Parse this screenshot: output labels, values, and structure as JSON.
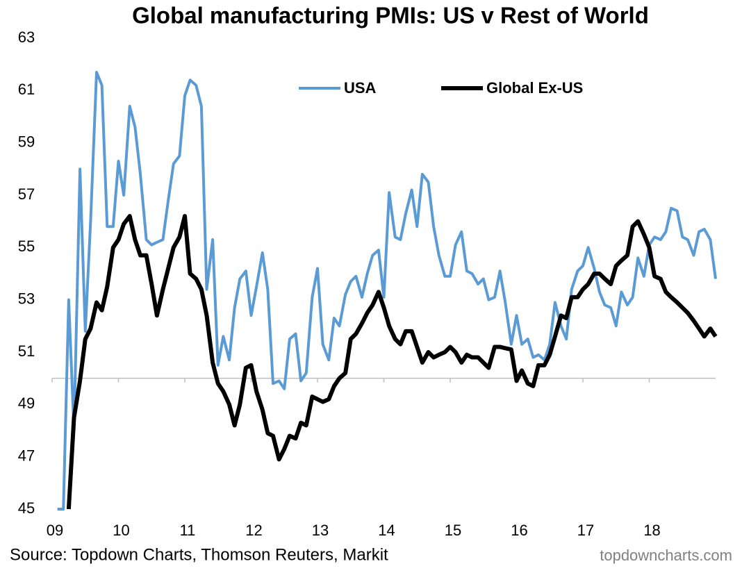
{
  "chart_data": {
    "type": "line",
    "title": "Global manufacturing PMIs: US v Rest of World",
    "source": "Source: Topdown Charts, Thomson Reuters, Markit",
    "watermark": "topdowncharts.com",
    "xlim": [
      2009,
      2019
    ],
    "ylim": [
      45,
      63
    ],
    "x_axis_crosses": 50,
    "yticks": [
      45,
      47,
      49,
      51,
      53,
      55,
      57,
      59,
      61,
      63
    ],
    "xticks": [
      {
        "value": 2009,
        "label": "09"
      },
      {
        "value": 2010,
        "label": "10"
      },
      {
        "value": 2011,
        "label": "11"
      },
      {
        "value": 2012,
        "label": "12"
      },
      {
        "value": 2013,
        "label": "13"
      },
      {
        "value": 2014,
        "label": "14"
      },
      {
        "value": 2015,
        "label": "15"
      },
      {
        "value": 2016,
        "label": "16"
      },
      {
        "value": 2017,
        "label": "17"
      },
      {
        "value": 2018,
        "label": "18"
      }
    ],
    "grid": false,
    "legend": "top",
    "x": [
      2009.08,
      2009.17,
      2009.25,
      2009.33,
      2009.42,
      2009.5,
      2009.58,
      2009.67,
      2009.75,
      2009.83,
      2009.92,
      2010,
      2010.08,
      2010.17,
      2010.25,
      2010.33,
      2010.42,
      2010.5,
      2010.58,
      2010.67,
      2010.75,
      2010.83,
      2010.92,
      2011,
      2011.08,
      2011.17,
      2011.25,
      2011.33,
      2011.42,
      2011.5,
      2011.58,
      2011.67,
      2011.75,
      2011.83,
      2011.92,
      2012,
      2012.08,
      2012.17,
      2012.25,
      2012.33,
      2012.42,
      2012.5,
      2012.58,
      2012.67,
      2012.75,
      2012.83,
      2012.92,
      2013,
      2013.08,
      2013.17,
      2013.25,
      2013.33,
      2013.42,
      2013.5,
      2013.58,
      2013.67,
      2013.75,
      2013.83,
      2013.92,
      2014,
      2014.08,
      2014.17,
      2014.25,
      2014.33,
      2014.42,
      2014.5,
      2014.58,
      2014.67,
      2014.75,
      2014.83,
      2014.92,
      2015,
      2015.08,
      2015.17,
      2015.25,
      2015.33,
      2015.42,
      2015.5,
      2015.58,
      2015.67,
      2015.75,
      2015.83,
      2015.92,
      2016,
      2016.08,
      2016.17,
      2016.25,
      2016.33,
      2016.42,
      2016.5,
      2016.58,
      2016.67,
      2016.75,
      2016.83,
      2016.92,
      2017,
      2017.08,
      2017.17,
      2017.25,
      2017.33,
      2017.42,
      2017.5,
      2017.58,
      2017.67,
      2017.75,
      2017.83,
      2017.92,
      2018,
      2018.08,
      2018.17,
      2018.25,
      2018.33,
      2018.42,
      2018.5,
      2018.58,
      2018.67,
      2018.75,
      2018.83,
      2018.92,
      2019
    ],
    "series": [
      {
        "name": "USA",
        "color": "#5b9bd5",
        "values": [
          45,
          45,
          53,
          48,
          58,
          51.8,
          56,
          61.7,
          61.2,
          55.8,
          55.8,
          58.3,
          57,
          60.4,
          59.6,
          57.8,
          55.3,
          55.1,
          55.2,
          55.3,
          56.8,
          58.2,
          58.5,
          60.8,
          61.4,
          61.2,
          60.4,
          53.4,
          55.3,
          50.5,
          51.6,
          50.7,
          52.7,
          53.8,
          54.1,
          52.4,
          53.5,
          54.8,
          53.4,
          49.8,
          49.9,
          49.6,
          51.5,
          51.7,
          49.9,
          50.2,
          53.1,
          54.2,
          51.3,
          50.7,
          52.3,
          52.0,
          53.2,
          53.7,
          53.9,
          53.1,
          54.0,
          54.7,
          54.9,
          53.1,
          57.1,
          55.4,
          55.3,
          56.3,
          57.2,
          55.8,
          57.8,
          57.5,
          55.8,
          54.7,
          53.9,
          53.9,
          55.1,
          55.6,
          54.1,
          54.0,
          53.6,
          53.8,
          53.0,
          53.1,
          54.1,
          52.9,
          51.3,
          52.4,
          51.3,
          51.5,
          50.8,
          50.9,
          50.7,
          51.3,
          52.9,
          52.0,
          51.5,
          53.4,
          54.1,
          54.3,
          55.0,
          54.2,
          53.3,
          52.8,
          52.7,
          52.0,
          53.3,
          52.8,
          53.1,
          54.6,
          53.9,
          55.1,
          55.4,
          55.3,
          55.6,
          56.5,
          56.4,
          55.4,
          55.3,
          54.7,
          55.6,
          55.7,
          55.3,
          53.8
        ]
      },
      {
        "name": "Global Ex-US",
        "color": "#000000",
        "values": [
          null,
          null,
          45,
          48.5,
          49.9,
          51.5,
          51.9,
          52.9,
          52.6,
          53.5,
          55.0,
          55.3,
          55.9,
          56.2,
          55.3,
          54.7,
          54.7,
          53.6,
          52.4,
          53.4,
          54.2,
          55.0,
          55.4,
          56.2,
          54.0,
          53.8,
          53.4,
          52.4,
          50.6,
          49.8,
          49.5,
          49.0,
          48.2,
          49.0,
          50.4,
          50.5,
          49.5,
          48.8,
          47.9,
          47.8,
          46.9,
          47.3,
          47.8,
          47.7,
          48.3,
          48.2,
          49.3,
          49.2,
          49.1,
          49.2,
          49.7,
          50.0,
          50.2,
          51.5,
          51.7,
          52.1,
          52.5,
          52.8,
          53.3,
          52.7,
          52.0,
          51.5,
          51.3,
          51.8,
          51.8,
          51.2,
          50.6,
          51.0,
          50.8,
          50.9,
          51.0,
          51.2,
          51.0,
          50.6,
          50.9,
          50.8,
          50.8,
          50.6,
          50.4,
          51.2,
          51.2,
          51.15,
          51.1,
          49.9,
          50.3,
          49.8,
          49.7,
          50.5,
          50.5,
          50.9,
          51.6,
          52.4,
          52.3,
          53.1,
          53.1,
          53.4,
          53.6,
          54.0,
          54.0,
          53.8,
          53.6,
          54.3,
          54.5,
          54.7,
          55.8,
          56.0,
          55.5,
          55.0,
          53.9,
          53.8,
          53.3,
          53.1,
          52.9,
          52.7,
          52.5,
          52.2,
          51.9,
          51.6,
          51.9,
          51.6
        ]
      }
    ]
  }
}
